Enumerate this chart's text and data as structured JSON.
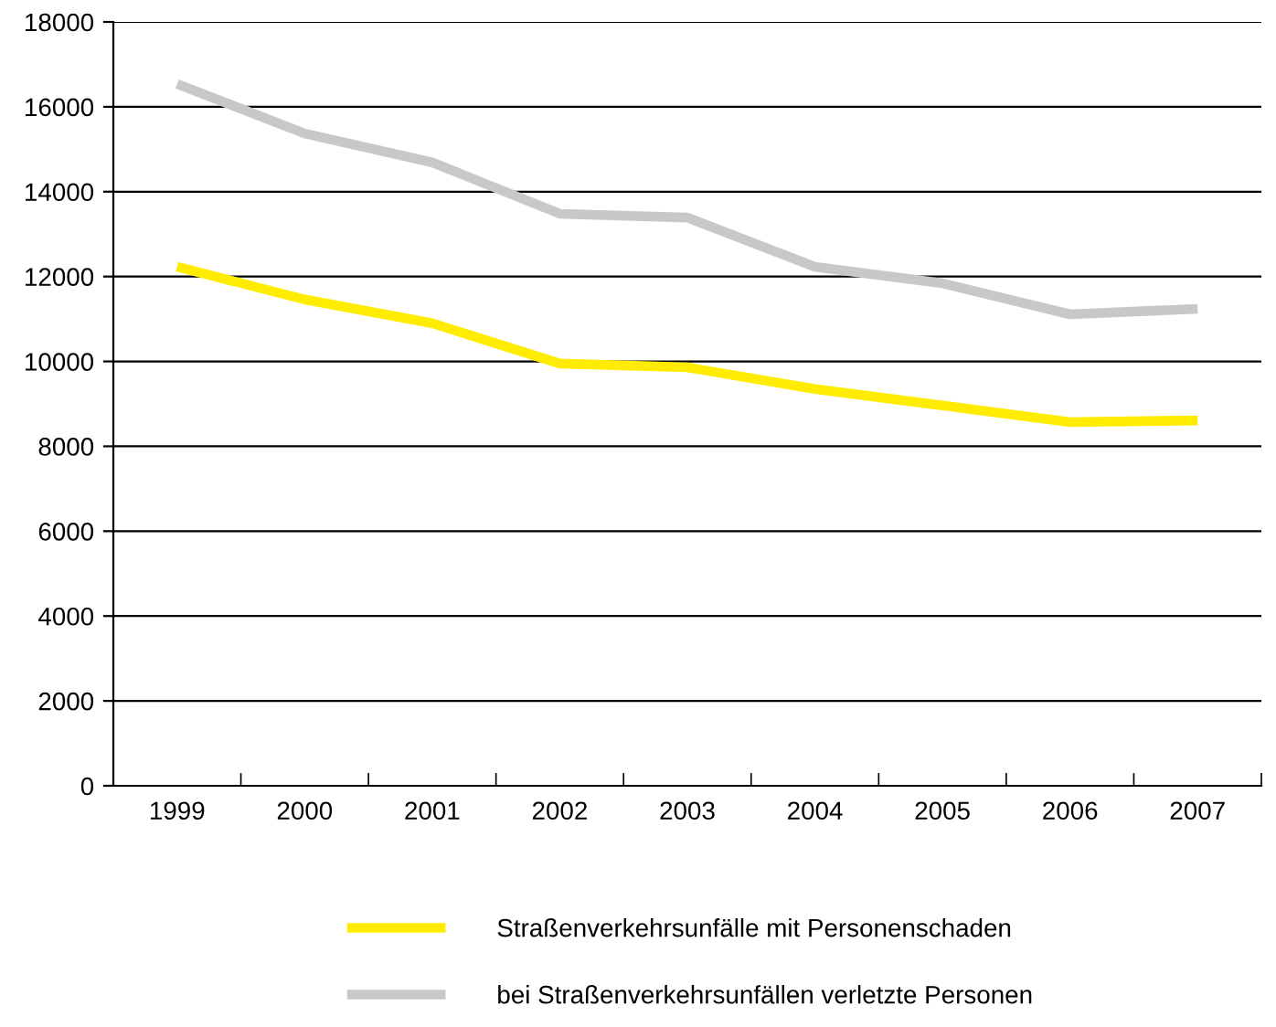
{
  "chart_data": {
    "type": "line",
    "categories": [
      "1999",
      "2000",
      "2001",
      "2002",
      "2003",
      "2004",
      "2005",
      "2006",
      "2007"
    ],
    "series": [
      {
        "name": "Straßenverkehrsunfälle mit Personenschaden",
        "color": "#ffec00",
        "values": [
          12230,
          11460,
          10900,
          9950,
          9860,
          9350,
          8960,
          8570,
          8610
        ]
      },
      {
        "name": "bei Straßenverkehrsunfällen verletzte Personen",
        "color": "#c8c8c8",
        "values": [
          16540,
          15370,
          14690,
          13480,
          13390,
          12230,
          11840,
          11110,
          11240
        ]
      }
    ],
    "ylim": [
      0,
      18000
    ],
    "yticks": [
      0,
      2000,
      4000,
      6000,
      8000,
      10000,
      12000,
      14000,
      16000,
      18000
    ],
    "grid": "y",
    "legend": "bottom",
    "marker": "none",
    "line_style": "solid"
  }
}
